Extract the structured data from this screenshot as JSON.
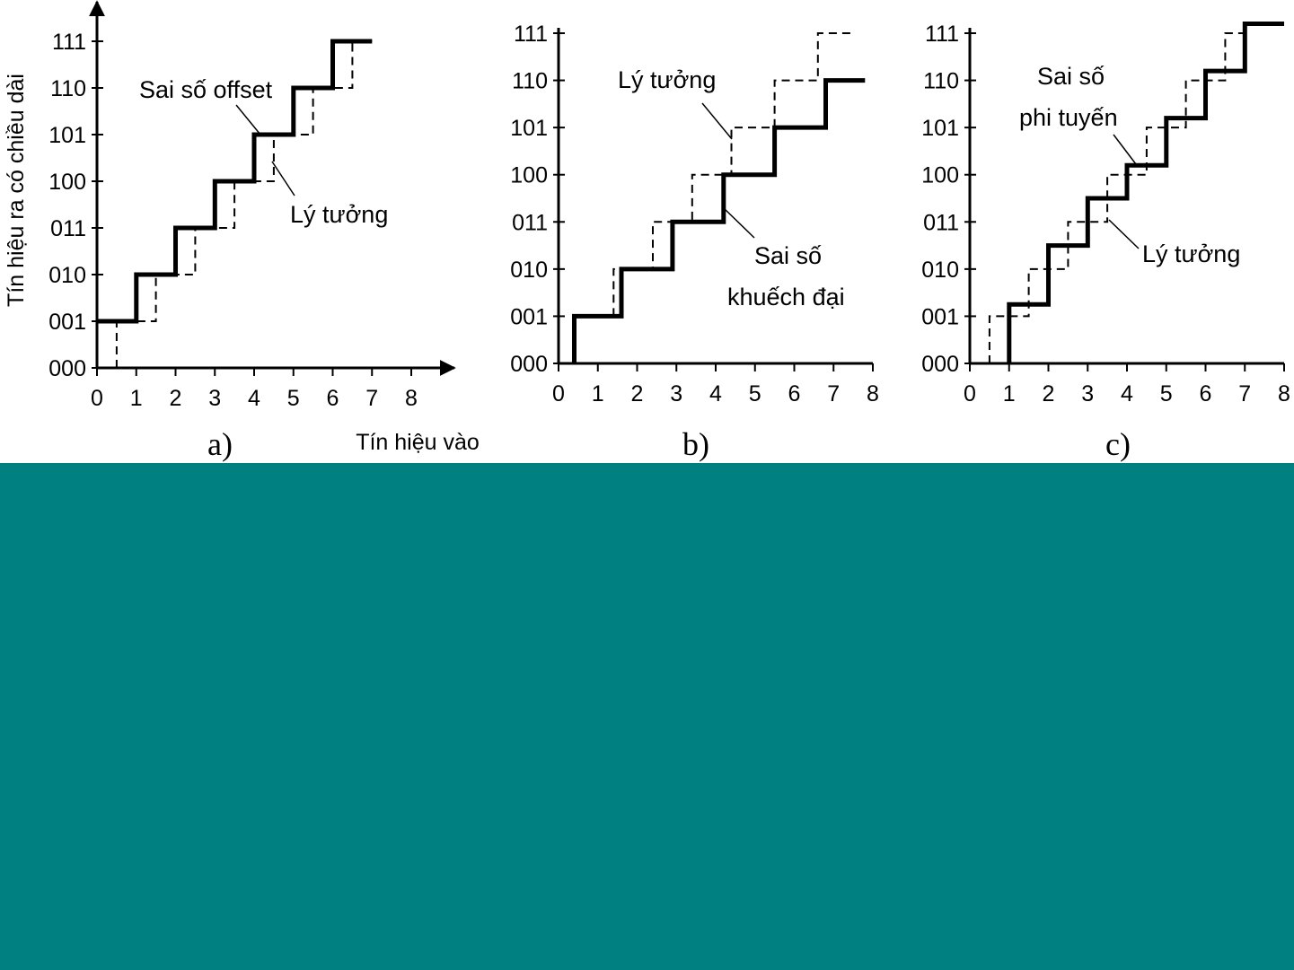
{
  "colors": {
    "teal_panel": "#008080",
    "ink": "#000000",
    "background": "#ffffff"
  },
  "y_tick_labels": [
    "000",
    "001",
    "010",
    "011",
    "100",
    "101",
    "110",
    "111"
  ],
  "chart_data": [
    {
      "type": "line",
      "panel_label": "a)",
      "ylabel": "Tín hiệu ra có chiều dài",
      "xlabel": "Tín hiệu vào",
      "x_ticks": [
        0,
        1,
        2,
        3,
        4,
        5,
        6,
        7,
        8
      ],
      "xlim": [
        0,
        8
      ],
      "ylim": [
        0,
        7
      ],
      "has_arrows": true,
      "series": [
        {
          "style": "solid",
          "points": [
            [
              0,
              1
            ],
            [
              1,
              1
            ],
            [
              1,
              2
            ],
            [
              2,
              2
            ],
            [
              2,
              3
            ],
            [
              3,
              3
            ],
            [
              3,
              4
            ],
            [
              4,
              4
            ],
            [
              4,
              5
            ],
            [
              5,
              5
            ],
            [
              5,
              6
            ],
            [
              6,
              6
            ],
            [
              6,
              7
            ],
            [
              7,
              7
            ]
          ]
        },
        {
          "style": "dashed",
          "points": [
            [
              0.5,
              0
            ],
            [
              0.5,
              1
            ],
            [
              1.5,
              1
            ],
            [
              1.5,
              2
            ],
            [
              2.5,
              2
            ],
            [
              2.5,
              3
            ],
            [
              3.5,
              3
            ],
            [
              3.5,
              4
            ],
            [
              4.5,
              4
            ],
            [
              4.5,
              5
            ],
            [
              5.5,
              5
            ],
            [
              5.5,
              6
            ],
            [
              6.5,
              6
            ],
            [
              6.5,
              7
            ],
            [
              7,
              7
            ]
          ]
        }
      ],
      "annotations": [
        {
          "text": "Sai số offset"
        },
        {
          "text": "Lý tưởng"
        }
      ]
    },
    {
      "type": "line",
      "panel_label": "b)",
      "x_ticks": [
        0,
        1,
        2,
        3,
        4,
        5,
        6,
        7,
        8
      ],
      "xlim": [
        0,
        8
      ],
      "ylim": [
        0,
        7
      ],
      "series": [
        {
          "style": "solid",
          "points": [
            [
              0.4,
              0
            ],
            [
              0.4,
              1
            ],
            [
              1.6,
              1
            ],
            [
              1.6,
              2
            ],
            [
              2.9,
              2
            ],
            [
              2.9,
              3
            ],
            [
              4.2,
              3
            ],
            [
              4.2,
              4
            ],
            [
              5.5,
              4
            ],
            [
              5.5,
              5
            ],
            [
              6.8,
              5
            ],
            [
              6.8,
              6
            ],
            [
              7.8,
              6
            ]
          ]
        },
        {
          "style": "dashed",
          "points": [
            [
              1.4,
              1
            ],
            [
              1.4,
              2
            ],
            [
              2.4,
              2
            ],
            [
              2.4,
              3
            ],
            [
              3.4,
              3
            ],
            [
              3.4,
              4
            ],
            [
              4.4,
              4
            ],
            [
              4.4,
              5
            ],
            [
              5.5,
              5
            ],
            [
              5.5,
              6
            ],
            [
              6.6,
              6
            ],
            [
              6.6,
              7
            ],
            [
              7.5,
              7
            ]
          ]
        }
      ],
      "annotations": [
        {
          "text": "Lý tưởng"
        },
        {
          "text": "Sai số"
        },
        {
          "text": "khuếch đại"
        }
      ]
    },
    {
      "type": "line",
      "panel_label": "c)",
      "x_ticks": [
        0,
        1,
        2,
        3,
        4,
        5,
        6,
        7,
        8
      ],
      "xlim": [
        0,
        8
      ],
      "ylim": [
        0,
        7
      ],
      "series": [
        {
          "style": "solid",
          "points": [
            [
              1,
              0
            ],
            [
              1,
              1.25
            ],
            [
              2,
              1.25
            ],
            [
              2,
              2.5
            ],
            [
              3,
              2.5
            ],
            [
              3,
              3.5
            ],
            [
              4,
              3.5
            ],
            [
              4,
              4.2
            ],
            [
              5,
              4.2
            ],
            [
              5,
              5.2
            ],
            [
              6,
              5.2
            ],
            [
              6,
              6.2
            ],
            [
              7,
              6.2
            ],
            [
              7,
              7.2
            ],
            [
              8,
              7.2
            ]
          ]
        },
        {
          "style": "dashed",
          "points": [
            [
              0.5,
              0
            ],
            [
              0.5,
              1
            ],
            [
              1.5,
              1
            ],
            [
              1.5,
              2
            ],
            [
              2.5,
              2
            ],
            [
              2.5,
              3
            ],
            [
              3.5,
              3
            ],
            [
              3.5,
              4
            ],
            [
              4.5,
              4
            ],
            [
              4.5,
              5
            ],
            [
              5.5,
              5
            ],
            [
              5.5,
              6
            ],
            [
              6.5,
              6
            ],
            [
              6.5,
              7
            ],
            [
              7,
              7
            ]
          ]
        }
      ],
      "annotations": [
        {
          "text": "Sai số"
        },
        {
          "text": "phi tuyến"
        },
        {
          "text": "Lý tưởng"
        }
      ]
    }
  ]
}
